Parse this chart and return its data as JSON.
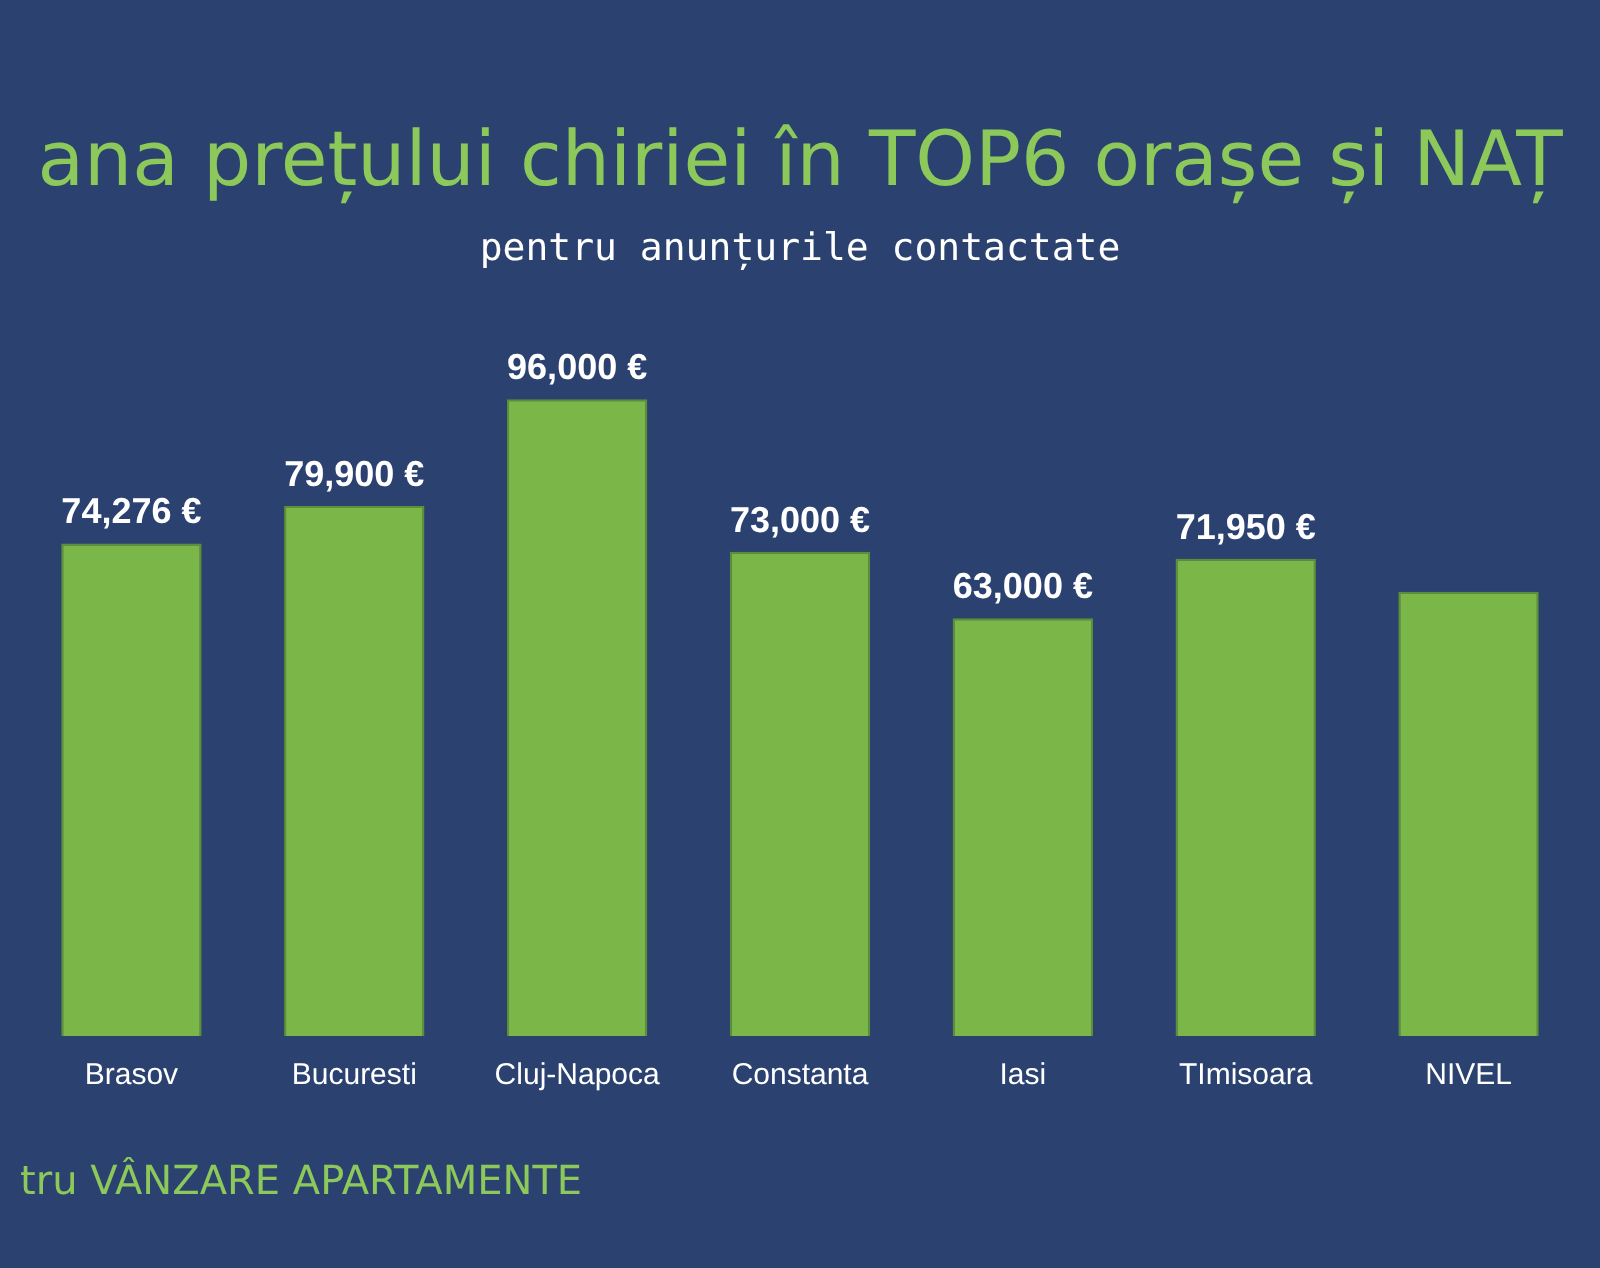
{
  "chart_data": {
    "type": "bar",
    "title": "ana prețului chiriei în TOP6 orașe și NAȚ",
    "subtitle": "pentru anunțurile contactate",
    "categories": [
      "Brasov",
      "Bucuresti",
      "Cluj-Napoca",
      "Constanta",
      "Iasi",
      "TImisoara",
      "NIVEL"
    ],
    "values": [
      74276,
      79900,
      96000,
      73000,
      63000,
      71950,
      67000
    ],
    "value_labels": [
      "74,276 €",
      "79,900 €",
      "96,000 €",
      "73,000 €",
      "63,000 €",
      "71,950 €",
      null
    ],
    "color": "#7ab648",
    "legend": false,
    "annotations": [
      "tru VÂNZARE APARTAMENTE"
    ]
  }
}
